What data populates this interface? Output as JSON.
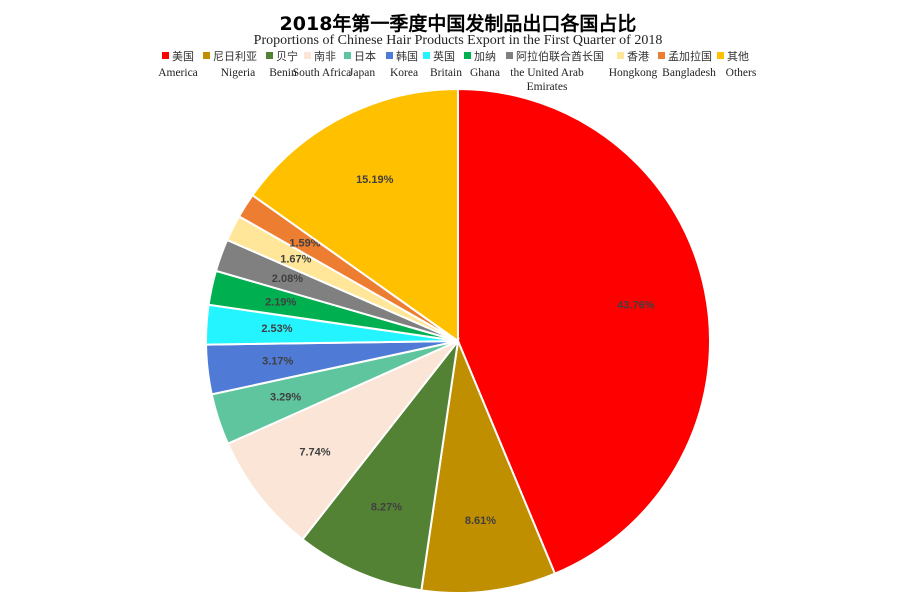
{
  "chart_data": {
    "type": "pie",
    "title": "2018年第一季度中国发制品出口各国占比",
    "subtitle": "Proportions of Chinese Hair Products Export in the First Quarter of 2018",
    "legend_position": "top",
    "series": [
      {
        "label_zh": "美国",
        "label_en": "America",
        "value": 43.76,
        "label": "43.76%",
        "color": "#ff0000"
      },
      {
        "label_zh": "尼日利亚",
        "label_en": "Nigeria",
        "value": 8.61,
        "label": "8.61%",
        "color": "#bf8f00"
      },
      {
        "label_zh": "贝宁",
        "label_en": "Benin",
        "value": 8.27,
        "label": "8.27%",
        "color": "#548235"
      },
      {
        "label_zh": "南非",
        "label_en": "South Africa",
        "value": 7.74,
        "label": "7.74%",
        "color": "#fbe5d6"
      },
      {
        "label_zh": "日本",
        "label_en": "Japan",
        "value": 3.29,
        "label": "3.29%",
        "color": "#5fc59e"
      },
      {
        "label_zh": "韩国",
        "label_en": "Korea",
        "value": 3.17,
        "label": "3.17%",
        "color": "#4f7bd6"
      },
      {
        "label_zh": "英国",
        "label_en": "Britain",
        "value": 2.53,
        "label": "2.53%",
        "color": "#24f4ff"
      },
      {
        "label_zh": "加纳",
        "label_en": "Ghana",
        "value": 2.19,
        "label": "2.19%",
        "color": "#00b050"
      },
      {
        "label_zh": "阿拉伯联合酋长国",
        "label_en": "the United Arab Emirates",
        "value": 2.08,
        "label": "2.08%",
        "color": "#808080"
      },
      {
        "label_zh": "香港",
        "label_en": "Hongkong",
        "value": 1.67,
        "label": "1.67%",
        "color": "#ffe699"
      },
      {
        "label_zh": "孟加拉国",
        "label_en": "Bangladesh",
        "value": 1.59,
        "label": "1.59%",
        "color": "#ed7d31"
      },
      {
        "label_zh": "其他",
        "label_en": "Others",
        "value": 15.19,
        "label": "15.19%",
        "color": "#ffc000"
      }
    ]
  }
}
